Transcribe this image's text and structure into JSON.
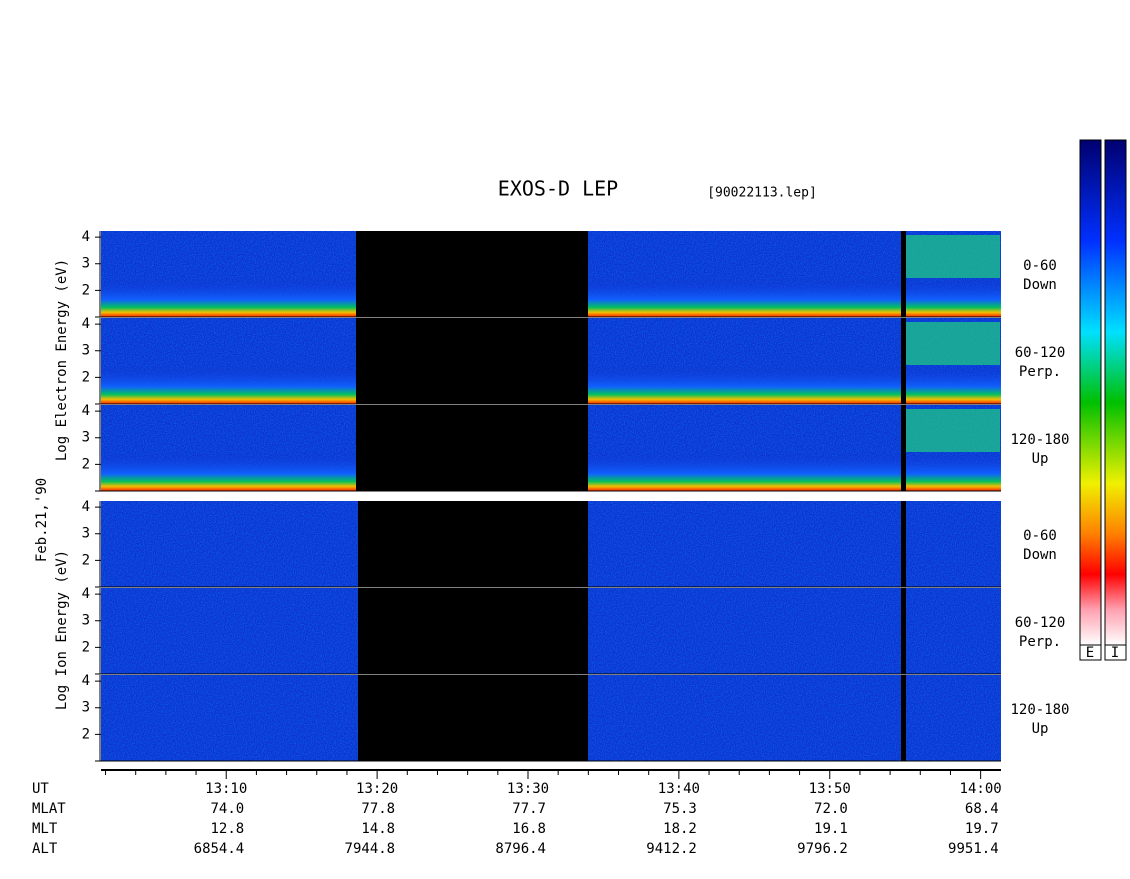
{
  "chart_data": {
    "type": "spectrogram",
    "title": "EXOS-D LEP",
    "file": "[90022113.lep]",
    "date": "Feb.21,'90",
    "groups": [
      {
        "ylabel": "Log Electron Energy (eV)",
        "panels": [
          {
            "name": "0-60",
            "sub": "Down"
          },
          {
            "name": "60-120",
            "sub": "Perp."
          },
          {
            "name": "120-180",
            "sub": "Up"
          }
        ]
      },
      {
        "ylabel": "Log Ion Energy (eV)",
        "panels": [
          {
            "name": "0-60",
            "sub": "Down"
          },
          {
            "name": "60-120",
            "sub": "Perp."
          },
          {
            "name": "120-180",
            "sub": "Up"
          }
        ]
      }
    ],
    "ylim": [
      1,
      4.23
    ],
    "yticks": [
      2,
      3,
      4
    ],
    "xlabel": "UT",
    "xlim": [
      781.7,
      841.35
    ],
    "xticks": [
      {
        "value": 790,
        "label": "13:10"
      },
      {
        "value": 800,
        "label": "13:20"
      },
      {
        "value": 810,
        "label": "13:30"
      },
      {
        "value": 820,
        "label": "13:40"
      },
      {
        "value": 830,
        "label": "13:50"
      },
      {
        "value": 840,
        "label": "14:00"
      }
    ],
    "minor_xticks": [
      782,
      784,
      786,
      788,
      792,
      794,
      796,
      798,
      802,
      804,
      806,
      808,
      812,
      814,
      816,
      818,
      822,
      824,
      826,
      828,
      832,
      834,
      836,
      838
    ],
    "ephemeris": [
      {
        "name": "MLAT",
        "values": [
          "74.0",
          "77.8",
          "77.7",
          "75.3",
          "72.0",
          "68.4"
        ]
      },
      {
        "name": "MLT",
        "values": [
          "12.8",
          "14.8",
          "16.8",
          "18.2",
          "19.1",
          "19.7"
        ]
      },
      {
        "name": "ALT",
        "values": [
          "6854.4",
          "7944.8",
          "8796.4",
          "9412.2",
          "9796.2",
          "9951.4"
        ]
      }
    ],
    "colorbars": [
      "E",
      "I"
    ]
  }
}
